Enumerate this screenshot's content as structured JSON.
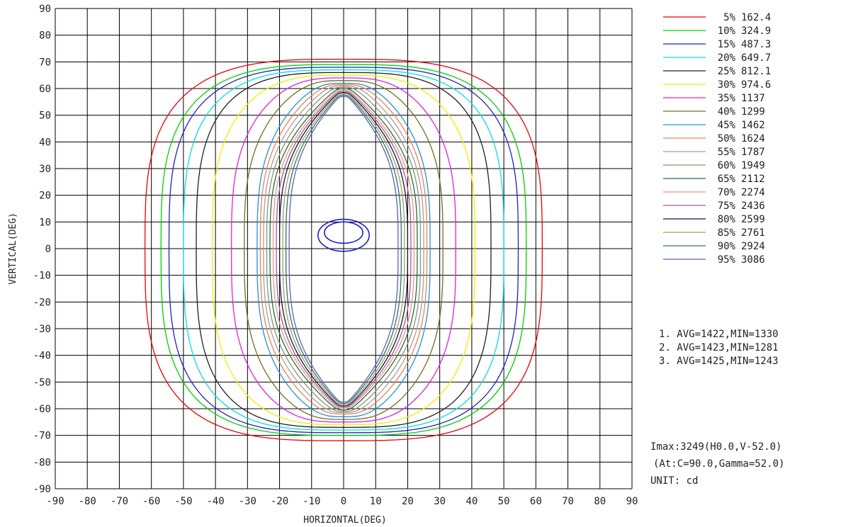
{
  "chart_data": {
    "type": "contour",
    "title": "",
    "xlabel": "HORIZONTAL(DEG)",
    "ylabel": "VERTICAL(DEG)",
    "xlim": [
      -90,
      90
    ],
    "ylim": [
      -90,
      90
    ],
    "x_ticks": [
      -90,
      -80,
      -70,
      -60,
      -50,
      -40,
      -30,
      -20,
      -10,
      0,
      10,
      20,
      30,
      40,
      50,
      60,
      70,
      80,
      90
    ],
    "y_ticks": [
      90,
      80,
      70,
      60,
      50,
      40,
      30,
      20,
      10,
      0,
      -10,
      -20,
      -30,
      -40,
      -50,
      -60,
      -70,
      -80,
      -90
    ],
    "grid": true,
    "legend_position": "top-right",
    "unit": "cd",
    "imax_text": "Imax:3249(H0.0,V-52.0)",
    "imax_at_text": "(At:C=90.0,Gamma=52.0)",
    "unit_text": "UNIT: cd",
    "stats": [
      "1. AVG=1422,MIN=1330",
      "2. AVG=1423,MIN=1281",
      "3. AVG=1425,MIN=1243"
    ],
    "series": [
      {
        "name": "5% 162.4",
        "percent": "5%",
        "value": "162.4",
        "color": "#e8000c",
        "hw": 62,
        "vt": 71,
        "vb": 72
      },
      {
        "name": "10% 324.9",
        "percent": "10%",
        "value": "324.9",
        "color": "#00d000",
        "hw": 57,
        "vt": 69,
        "vb": 70
      },
      {
        "name": "15% 487.3",
        "percent": "15%",
        "value": "487.3",
        "color": "#2020c0",
        "hw": 54.5,
        "vt": 68,
        "vb": 69
      },
      {
        "name": "20% 649.7",
        "percent": "20%",
        "value": "649.7",
        "color": "#00e0e8",
        "hw": 50,
        "vt": 67,
        "vb": 68
      },
      {
        "name": "25% 812.1",
        "percent": "25%",
        "value": "812.1",
        "color": "#202020",
        "hw": 46,
        "vt": 66,
        "vb": 67
      },
      {
        "name": "30% 974.6",
        "percent": "30%",
        "value": "974.6",
        "color": "#f0f000",
        "hw": 41,
        "vt": 65,
        "vb": 66
      },
      {
        "name": "35% 1137",
        "percent": "35%",
        "value": "1137",
        "color": "#e020e0",
        "hw": 35,
        "vt": 64,
        "vb": 65
      },
      {
        "name": "40% 1299",
        "percent": "40%",
        "value": "1299",
        "color": "#707020",
        "hw": 31,
        "vt": 63,
        "vb": 64
      },
      {
        "name": "45% 1462",
        "percent": "45%",
        "value": "1462",
        "color": "#2090e0",
        "hw": 27,
        "vt": 62,
        "vb": 63
      },
      {
        "name": "50% 1624",
        "percent": "50%",
        "value": "1624",
        "color": "#f08050",
        "hw": 26,
        "vt": 61.5,
        "vb": 62
      },
      {
        "name": "55% 1787",
        "percent": "55%",
        "value": "1787",
        "color": "#a0a0a0",
        "hw": 25,
        "vt": 61,
        "vb": 61.5
      },
      {
        "name": "60% 1949",
        "percent": "60%",
        "value": "1949",
        "color": "#909070",
        "hw": 24,
        "vt": 60.5,
        "vb": 61
      },
      {
        "name": "65% 2112",
        "percent": "65%",
        "value": "2112",
        "color": "#207040",
        "hw": 23,
        "vt": 60,
        "vb": 60.5
      },
      {
        "name": "70% 2274",
        "percent": "70%",
        "value": "2274",
        "color": "#f09090",
        "hw": 22,
        "vt": 59.5,
        "vb": 60
      },
      {
        "name": "75% 2436",
        "percent": "75%",
        "value": "2436",
        "color": "#a06080",
        "hw": 21,
        "vt": 59,
        "vb": 59.5
      },
      {
        "name": "80% 2599",
        "percent": "80%",
        "value": "2599",
        "color": "#101040",
        "hw": 20,
        "vt": 58.5,
        "vb": 59
      },
      {
        "name": "85% 2761",
        "percent": "85%",
        "value": "2761",
        "color": "#a0a060",
        "hw": 19,
        "vt": 58,
        "vb": 58.5
      },
      {
        "name": "90% 2924",
        "percent": "90%",
        "value": "2924",
        "color": "#307070",
        "hw": 18,
        "vt": 57.5,
        "vb": 58
      },
      {
        "name": "95% 3086",
        "percent": "95%",
        "value": "3086",
        "color": "#6060b0",
        "hw": 17,
        "vt": 57,
        "vb": 57.5
      }
    ]
  }
}
